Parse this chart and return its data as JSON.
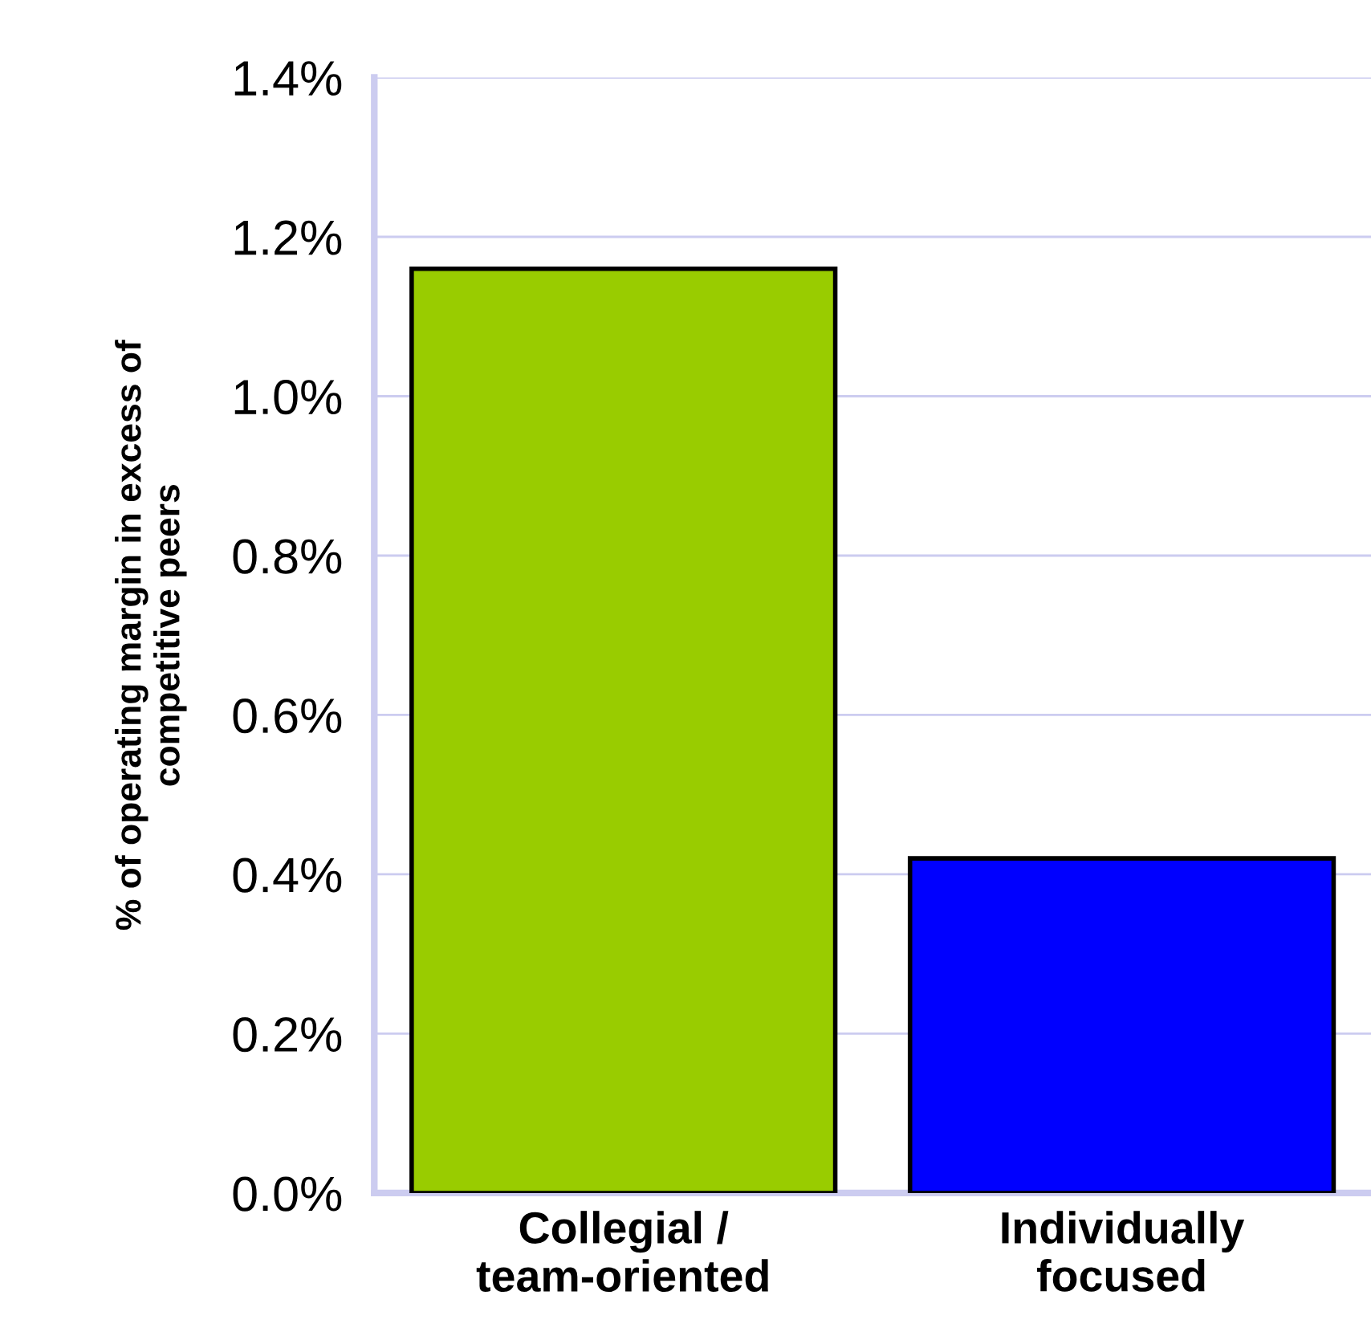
{
  "chart_data": {
    "type": "bar",
    "ylabel": "% of operating margin in excess of\ncompetitive peers",
    "categories": [
      "Collegial /\nteam-oriented",
      "Individually\nfocused"
    ],
    "values": [
      1.16,
      0.42
    ],
    "colors": [
      "#99cc00",
      "#0000ff"
    ],
    "ylim": [
      0,
      1.4
    ],
    "yticks": [
      {
        "value": 0,
        "label": "0.0%"
      },
      {
        "value": 0.2,
        "label": "0.2%"
      },
      {
        "value": 0.4,
        "label": "0.4%"
      },
      {
        "value": 0.6,
        "label": "0.6%"
      },
      {
        "value": 0.8,
        "label": "0.8%"
      },
      {
        "value": 1.0,
        "label": "1.0%"
      },
      {
        "value": 1.2,
        "label": "1.2%"
      },
      {
        "value": 1.4,
        "label": "1.4%"
      }
    ],
    "grid": "y",
    "legend": false
  }
}
